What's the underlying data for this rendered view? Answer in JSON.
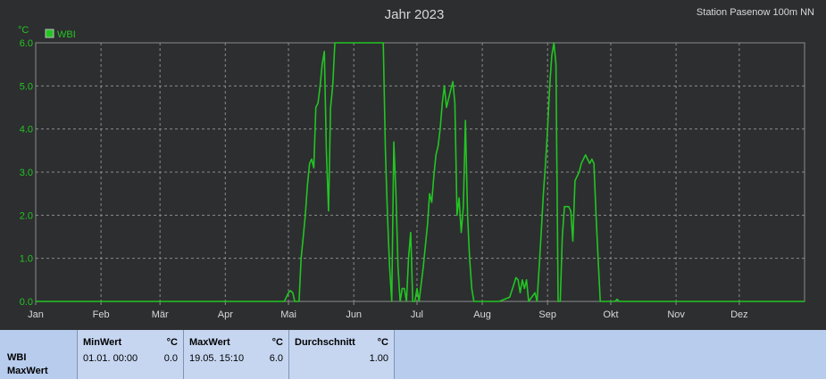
{
  "title": "Jahr 2023",
  "station": "Station Pasenow 100m NN",
  "unit": "°C",
  "legend": {
    "label": "WBI",
    "color": "#22c522"
  },
  "chart_data": {
    "type": "line",
    "ylim": [
      0,
      6
    ],
    "yticks": [
      "0.0",
      "1.0",
      "2.0",
      "3.0",
      "4.0",
      "5.0",
      "6.0"
    ],
    "xlim": [
      0,
      365
    ],
    "months": [
      "Jan",
      "Feb",
      "Mär",
      "Apr",
      "Mai",
      "Jun",
      "Jul",
      "Aug",
      "Sep",
      "Okt",
      "Nov",
      "Dez"
    ],
    "month_starts": [
      0,
      31,
      59,
      90,
      120,
      151,
      181,
      212,
      243,
      273,
      304,
      334
    ],
    "grid": true,
    "legend_position": "top-left",
    "series": [
      {
        "name": "WBI",
        "color": "#22c522",
        "points": [
          [
            0,
            0
          ],
          [
            118,
            0
          ],
          [
            120,
            0.2
          ],
          [
            121,
            0.25
          ],
          [
            122,
            0.2
          ],
          [
            123,
            0
          ],
          [
            125,
            0
          ],
          [
            126,
            1
          ],
          [
            127,
            1.5
          ],
          [
            128,
            2
          ],
          [
            129,
            2.7
          ],
          [
            130,
            3.2
          ],
          [
            131,
            3.3
          ],
          [
            132,
            3.1
          ],
          [
            133,
            4.5
          ],
          [
            134,
            4.6
          ],
          [
            135,
            5.0
          ],
          [
            136,
            5.5
          ],
          [
            137,
            5.8
          ],
          [
            138,
            3.5
          ],
          [
            139,
            2.1
          ],
          [
            140,
            4.5
          ],
          [
            141,
            5.0
          ],
          [
            142,
            6
          ],
          [
            150,
            6
          ],
          [
            165,
            6
          ],
          [
            166,
            3.5
          ],
          [
            167,
            2.0
          ],
          [
            168,
            0.8
          ],
          [
            169,
            0
          ],
          [
            170,
            3.7
          ],
          [
            171,
            2.5
          ],
          [
            172,
            0.8
          ],
          [
            173,
            0
          ],
          [
            174,
            0.3
          ],
          [
            175,
            0.3
          ],
          [
            176,
            0
          ],
          [
            177,
            1.0
          ],
          [
            178,
            1.6
          ],
          [
            179,
            0
          ],
          [
            180,
            0
          ],
          [
            181,
            0.3
          ],
          [
            182,
            0
          ],
          [
            184,
            0.8
          ],
          [
            185,
            1.3
          ],
          [
            186,
            1.8
          ],
          [
            187,
            2.5
          ],
          [
            188,
            2.3
          ],
          [
            189,
            2.9
          ],
          [
            190,
            3.4
          ],
          [
            191,
            3.6
          ],
          [
            192,
            4.0
          ],
          [
            193,
            4.6
          ],
          [
            194,
            5.0
          ],
          [
            195,
            4.5
          ],
          [
            196,
            4.7
          ],
          [
            197,
            4.9
          ],
          [
            198,
            5.1
          ],
          [
            199,
            4.6
          ],
          [
            200,
            2.0
          ],
          [
            201,
            2.4
          ],
          [
            202,
            1.6
          ],
          [
            203,
            2.2
          ],
          [
            204,
            4.2
          ],
          [
            205,
            2.0
          ],
          [
            206,
            1.0
          ],
          [
            207,
            0.3
          ],
          [
            208,
            0
          ],
          [
            220,
            0
          ],
          [
            225,
            0.1
          ],
          [
            227,
            0.4
          ],
          [
            228,
            0.55
          ],
          [
            229,
            0.5
          ],
          [
            230,
            0.2
          ],
          [
            231,
            0.5
          ],
          [
            232,
            0.3
          ],
          [
            233,
            0.5
          ],
          [
            234,
            0
          ],
          [
            237,
            0.2
          ],
          [
            238,
            0
          ],
          [
            239,
            0.8
          ],
          [
            240,
            1.6
          ],
          [
            241,
            2.5
          ],
          [
            242,
            3.2
          ],
          [
            243,
            4.0
          ],
          [
            244,
            5.0
          ],
          [
            245,
            5.7
          ],
          [
            246,
            6
          ],
          [
            247,
            5.5
          ],
          [
            248,
            0
          ],
          [
            249,
            0
          ],
          [
            250,
            1.5
          ],
          [
            251,
            2.2
          ],
          [
            252,
            2.2
          ],
          [
            253,
            2.2
          ],
          [
            254,
            2.1
          ],
          [
            255,
            1.4
          ],
          [
            256,
            2.8
          ],
          [
            257,
            2.9
          ],
          [
            258,
            3.0
          ],
          [
            259,
            3.2
          ],
          [
            260,
            3.3
          ],
          [
            261,
            3.4
          ],
          [
            262,
            3.3
          ],
          [
            263,
            3.2
          ],
          [
            264,
            3.3
          ],
          [
            265,
            3.2
          ],
          [
            266,
            2.0
          ],
          [
            267,
            1.0
          ],
          [
            268,
            0
          ],
          [
            275,
            0
          ],
          [
            276,
            0.05
          ],
          [
            277,
            0
          ],
          [
            365,
            0
          ]
        ]
      }
    ]
  },
  "stats": {
    "label1": "WBI",
    "label2": "MaxWert",
    "min": {
      "header": "MinWert",
      "unit": "°C",
      "date": "01.01.  00:00",
      "value": "0.0"
    },
    "max": {
      "header": "MaxWert",
      "unit": "°C",
      "date": "19.05.  15:10",
      "value": "6.0"
    },
    "avg": {
      "header": "Durchschnitt",
      "unit": "°C",
      "value": "1.00"
    }
  }
}
